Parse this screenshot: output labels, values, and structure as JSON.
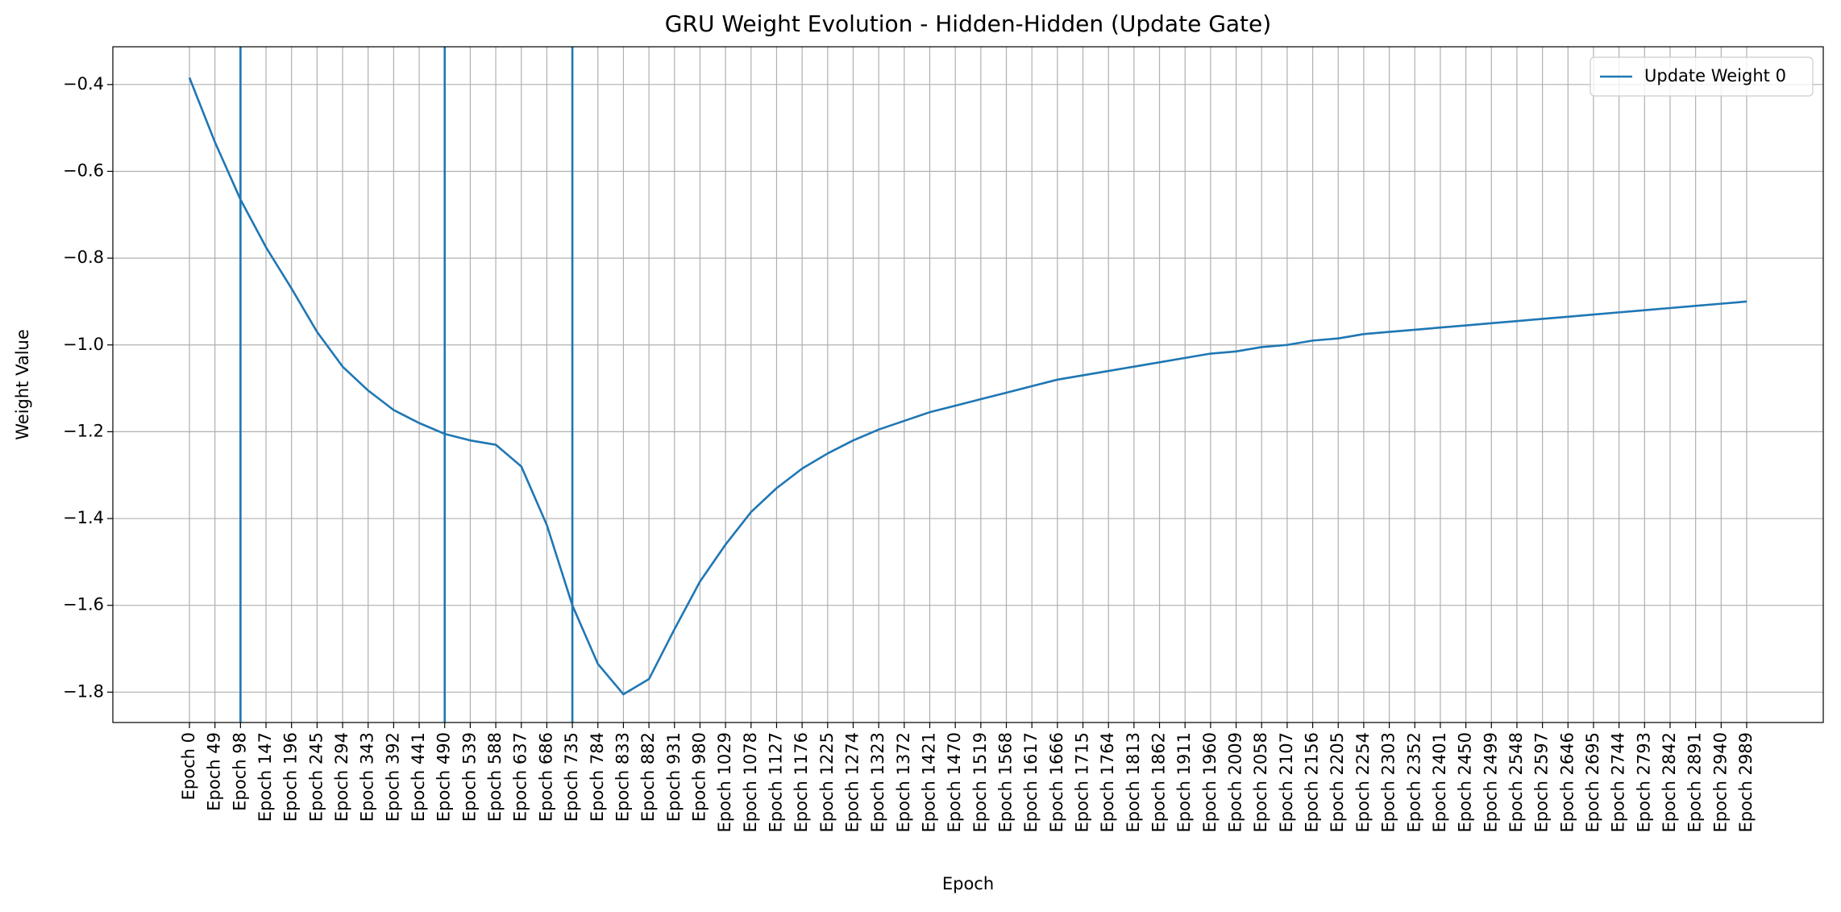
{
  "chart_data": {
    "type": "line",
    "title": "GRU Weight Evolution - Hidden-Hidden (Update Gate)",
    "x_label": "Epoch",
    "y_label": "Weight Value",
    "categories": [
      "Epoch 0",
      "Epoch 49",
      "Epoch 98",
      "Epoch 147",
      "Epoch 196",
      "Epoch 245",
      "Epoch 294",
      "Epoch 343",
      "Epoch 392",
      "Epoch 441",
      "Epoch 490",
      "Epoch 539",
      "Epoch 588",
      "Epoch 637",
      "Epoch 686",
      "Epoch 735",
      "Epoch 784",
      "Epoch 833",
      "Epoch 882",
      "Epoch 931",
      "Epoch 980",
      "Epoch 1029",
      "Epoch 1078",
      "Epoch 1127",
      "Epoch 1176",
      "Epoch 1225",
      "Epoch 1274",
      "Epoch 1323",
      "Epoch 1372",
      "Epoch 1421",
      "Epoch 1470",
      "Epoch 1519",
      "Epoch 1568",
      "Epoch 1617",
      "Epoch 1666",
      "Epoch 1715",
      "Epoch 1764",
      "Epoch 1813",
      "Epoch 1862",
      "Epoch 1911",
      "Epoch 1960",
      "Epoch 2009",
      "Epoch 2058",
      "Epoch 2107",
      "Epoch 2156",
      "Epoch 2205",
      "Epoch 2254",
      "Epoch 2303",
      "Epoch 2352",
      "Epoch 2401",
      "Epoch 2450",
      "Epoch 2499",
      "Epoch 2548",
      "Epoch 2597",
      "Epoch 2646",
      "Epoch 2695",
      "Epoch 2744",
      "Epoch 2793",
      "Epoch 2842",
      "Epoch 2891",
      "Epoch 2940",
      "Epoch 2989"
    ],
    "series": [
      {
        "name": "Update Weight 0",
        "color": "#1f77b4",
        "values": [
          -0.384,
          -0.533,
          -0.665,
          -0.775,
          -0.87,
          -0.97,
          -1.05,
          -1.105,
          -1.15,
          -1.18,
          -1.205,
          -1.22,
          -1.23,
          -1.28,
          -1.415,
          -1.6,
          -1.735,
          -1.805,
          -1.77,
          -1.655,
          -1.545,
          -1.46,
          -1.385,
          -1.33,
          -1.285,
          -1.25,
          -1.22,
          -1.195,
          -1.175,
          -1.155,
          -1.14,
          -1.125,
          -1.11,
          -1.095,
          -1.08,
          -1.07,
          -1.06,
          -1.05,
          -1.04,
          -1.03,
          -1.02,
          -1.015,
          -1.005,
          -1.0,
          -0.99,
          -0.985,
          -0.975,
          -0.97,
          -0.965,
          -0.96,
          -0.955,
          -0.95,
          -0.945,
          -0.94,
          -0.935,
          -0.93,
          -0.925,
          -0.92,
          -0.915,
          -0.91,
          -0.905,
          -0.9
        ]
      }
    ],
    "vlines": [
      "Epoch 98",
      "Epoch 490",
      "Epoch 735"
    ],
    "ylim": [
      -1.87,
      -0.313
    ],
    "yticks": [
      {
        "value": -1.8,
        "label": "−1.8"
      },
      {
        "value": -1.6,
        "label": "−1.6"
      },
      {
        "value": -1.4,
        "label": "−1.4"
      },
      {
        "value": -1.2,
        "label": "−1.2"
      },
      {
        "value": -1.0,
        "label": "−1.0"
      },
      {
        "value": -0.8,
        "label": "−0.8"
      },
      {
        "value": -0.6,
        "label": "−0.6"
      },
      {
        "value": -0.4,
        "label": "−0.4"
      }
    ],
    "grid": true,
    "legend": "upper right"
  }
}
